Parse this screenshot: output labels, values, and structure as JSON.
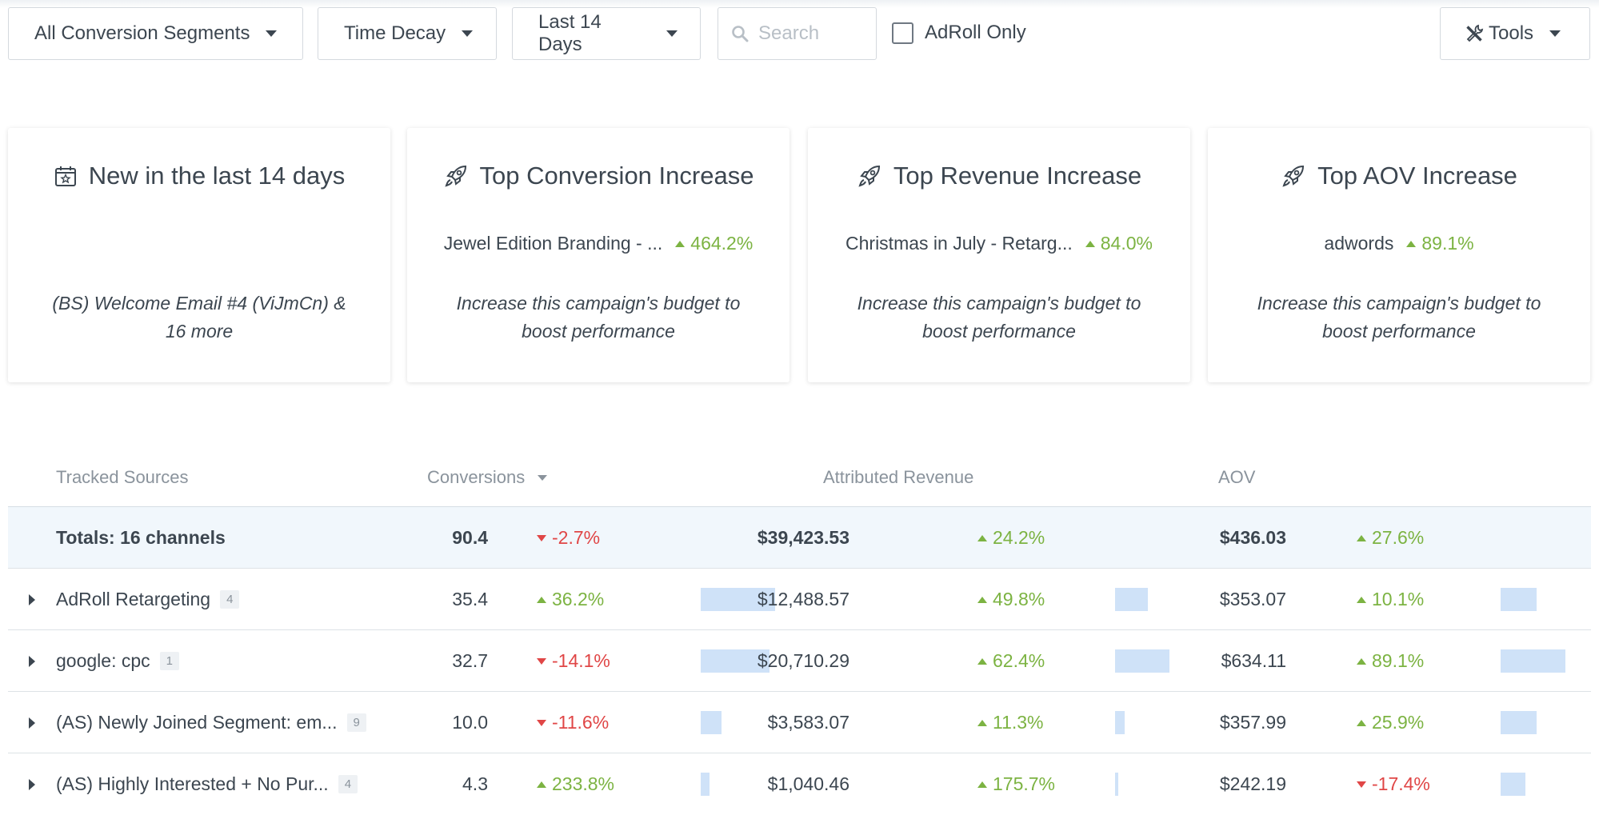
{
  "toolbar": {
    "segments": "All Conversion Segments",
    "model": "Time Decay",
    "range": "Last 14 Days",
    "search_placeholder": "Search",
    "adroll_only": "AdRoll Only",
    "tools": "Tools"
  },
  "cards": [
    {
      "title": "New in the last 14 days",
      "icon": "calendar-star-icon",
      "name": "",
      "change": "",
      "note": "(BS) Welcome Email #4 (ViJmCn) & 16 more"
    },
    {
      "title": "Top Conversion Increase",
      "icon": "rocket-icon",
      "name": "Jewel Edition Branding - ...",
      "change": "464.2%",
      "note": "Increase this campaign's budget to boost performance"
    },
    {
      "title": "Top Revenue Increase",
      "icon": "rocket-icon",
      "name": "Christmas in July - Retarg...",
      "change": "84.0%",
      "note": "Increase this campaign's budget to boost performance"
    },
    {
      "title": "Top AOV Increase",
      "icon": "rocket-icon",
      "name": "adwords",
      "change": "89.1%",
      "note": "Increase this campaign's budget to boost performance"
    }
  ],
  "table": {
    "headers": {
      "sources": "Tracked Sources",
      "conversions": "Conversions",
      "revenue": "Attributed Revenue",
      "aov": "AOV"
    },
    "totals": {
      "label": "Totals: 16 channels",
      "conversions": "90.4",
      "conv_change": "-2.7%",
      "revenue": "$39,423.53",
      "rev_change": "24.2%",
      "aov": "$436.03",
      "aov_change": "27.6%"
    },
    "rows": [
      {
        "name": "AdRoll Retargeting",
        "count": "4",
        "conversions": "35.4",
        "conv_change": "36.2%",
        "conv_dir": "up",
        "revenue": "$12,488.57",
        "rev_change": "49.8%",
        "rev_dir": "up",
        "aov": "$353.07",
        "aov_change": "10.1%",
        "aov_dir": "up",
        "conv_share": 1.0,
        "rev_share": 0.6,
        "aov_share": 0.56
      },
      {
        "name": "google: cpc",
        "count": "1",
        "conversions": "32.7",
        "conv_change": "-14.1%",
        "conv_dir": "down",
        "revenue": "$20,710.29",
        "rev_change": "62.4%",
        "rev_dir": "up",
        "aov": "$634.11",
        "aov_change": "89.1%",
        "aov_dir": "up",
        "conv_share": 0.92,
        "rev_share": 1.0,
        "aov_share": 1.0
      },
      {
        "name": "(AS) Newly Joined Segment: em...",
        "count": "9",
        "conversions": "10.0",
        "conv_change": "-11.6%",
        "conv_dir": "down",
        "revenue": "$3,583.07",
        "rev_change": "11.3%",
        "rev_dir": "up",
        "aov": "$357.99",
        "aov_change": "25.9%",
        "aov_dir": "up",
        "conv_share": 0.28,
        "rev_share": 0.17,
        "aov_share": 0.56
      },
      {
        "name": "(AS) Highly Interested + No Pur...",
        "count": "4",
        "conversions": "4.3",
        "conv_change": "233.8%",
        "conv_dir": "up",
        "revenue": "$1,040.46",
        "rev_change": "175.7%",
        "rev_dir": "up",
        "aov": "$242.19",
        "aov_change": "-17.4%",
        "aov_dir": "down",
        "conv_share": 0.12,
        "rev_share": 0.05,
        "aov_share": 0.38
      }
    ]
  }
}
